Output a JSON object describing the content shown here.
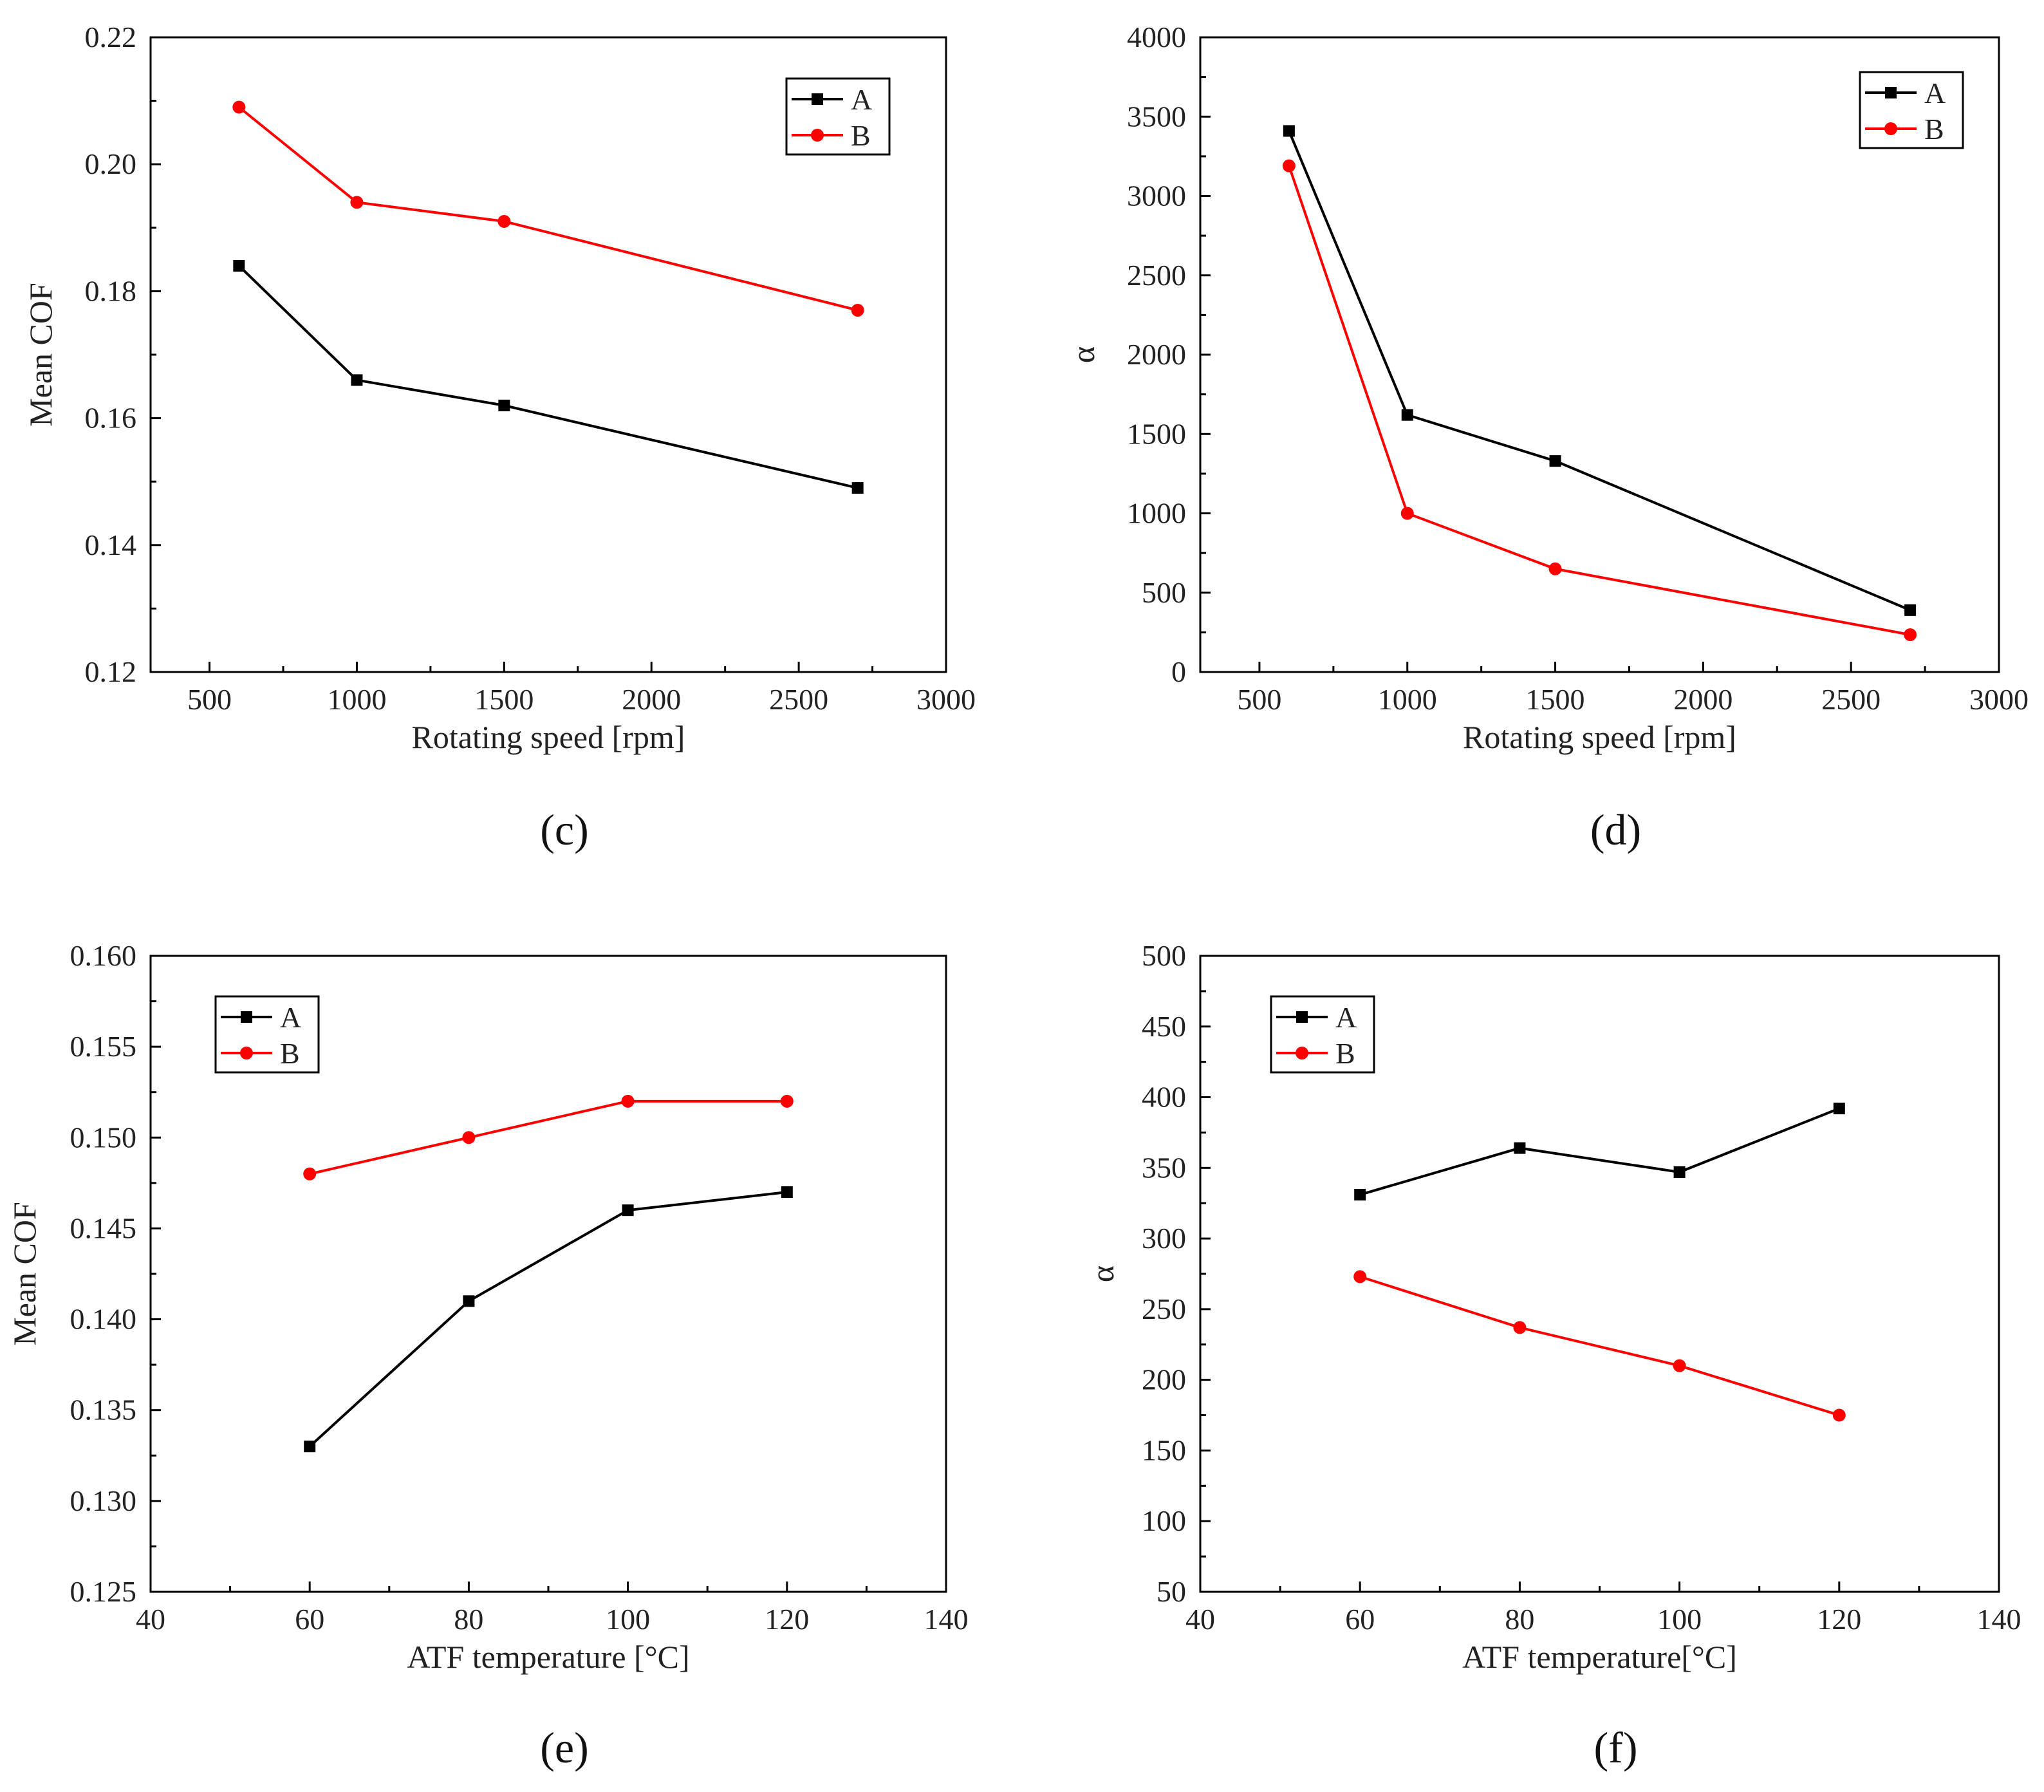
{
  "colors": {
    "A": "#000000",
    "B": "#ff0000"
  },
  "chart_data": [
    {
      "panel": "(c)",
      "type": "line",
      "xlabel": "Rotating speed [rpm]",
      "ylabel": "Mean COF",
      "xlim": [
        300,
        3000
      ],
      "ylim": [
        0.12,
        0.22
      ],
      "xticks": [
        500,
        1000,
        1500,
        2000,
        2500,
        3000
      ],
      "xtick_labels": [
        "500",
        "1000",
        "1500",
        "2000",
        "2500",
        "3000"
      ],
      "yticks": [
        0.12,
        0.14,
        0.16,
        0.18,
        0.2,
        0.22
      ],
      "ytick_labels": [
        "0.12",
        "0.14",
        "0.16",
        "0.18",
        "0.20",
        "0.22"
      ],
      "legend": "top-right",
      "x": [
        600,
        1000,
        1500,
        2700
      ],
      "series": [
        {
          "name": "A",
          "marker": "square",
          "values": [
            0.184,
            0.166,
            0.162,
            0.149
          ]
        },
        {
          "name": "B",
          "marker": "circle",
          "values": [
            0.209,
            0.194,
            0.191,
            0.177
          ]
        }
      ]
    },
    {
      "panel": "(d)",
      "type": "line",
      "xlabel": "Rotating speed [rpm]",
      "ylabel": "α",
      "xlim": [
        300,
        3000
      ],
      "ylim": [
        0,
        4000
      ],
      "xticks": [
        500,
        1000,
        1500,
        2000,
        2500,
        3000
      ],
      "xtick_labels": [
        "500",
        "1000",
        "1500",
        "2000",
        "2500",
        "3000"
      ],
      "yticks": [
        0,
        500,
        1000,
        1500,
        2000,
        2500,
        3000,
        3500,
        4000
      ],
      "ytick_labels": [
        "0",
        "500",
        "1000",
        "1500",
        "2000",
        "2500",
        "3000",
        "3500",
        "4000"
      ],
      "legend": "top-right",
      "x": [
        600,
        1000,
        1500,
        2700
      ],
      "series": [
        {
          "name": "A",
          "marker": "square",
          "values": [
            3410,
            1620,
            1330,
            390
          ]
        },
        {
          "name": "B",
          "marker": "circle",
          "values": [
            3190,
            1000,
            650,
            235
          ]
        }
      ]
    },
    {
      "panel": "(e)",
      "type": "line",
      "xlabel": "ATF temperature [°C]",
      "ylabel": "Mean COF",
      "xlim": [
        40,
        140
      ],
      "ylim": [
        0.125,
        0.16
      ],
      "xticks": [
        40,
        60,
        80,
        100,
        120,
        140
      ],
      "xtick_labels": [
        "40",
        "60",
        "80",
        "100",
        "120",
        "140"
      ],
      "yticks": [
        0.125,
        0.13,
        0.135,
        0.14,
        0.145,
        0.15,
        0.155,
        0.16
      ],
      "ytick_labels": [
        "0.125",
        "0.130",
        "0.135",
        "0.140",
        "0.145",
        "0.150",
        "0.155",
        "0.160"
      ],
      "legend": "top-left",
      "x": [
        60,
        80,
        100,
        120
      ],
      "series": [
        {
          "name": "A",
          "marker": "square",
          "values": [
            0.133,
            0.141,
            0.146,
            0.147
          ]
        },
        {
          "name": "B",
          "marker": "circle",
          "values": [
            0.148,
            0.15,
            0.152,
            0.152
          ]
        }
      ]
    },
    {
      "panel": "(f)",
      "type": "line",
      "xlabel": "ATF temperature[°C]",
      "ylabel": "α",
      "xlim": [
        40,
        140
      ],
      "ylim": [
        50,
        500
      ],
      "xticks": [
        40,
        60,
        80,
        100,
        120,
        140
      ],
      "xtick_labels": [
        "40",
        "60",
        "80",
        "100",
        "120",
        "140"
      ],
      "yticks": [
        50,
        100,
        150,
        200,
        250,
        300,
        350,
        400,
        450,
        500
      ],
      "ytick_labels": [
        "50",
        "100",
        "150",
        "200",
        "250",
        "300",
        "350",
        "400",
        "450",
        "500"
      ],
      "legend": "top-left",
      "x": [
        60,
        80,
        100,
        120
      ],
      "series": [
        {
          "name": "A",
          "marker": "square",
          "values": [
            331,
            364,
            347,
            392
          ]
        },
        {
          "name": "B",
          "marker": "circle",
          "values": [
            273,
            237,
            210,
            175
          ]
        }
      ]
    }
  ]
}
